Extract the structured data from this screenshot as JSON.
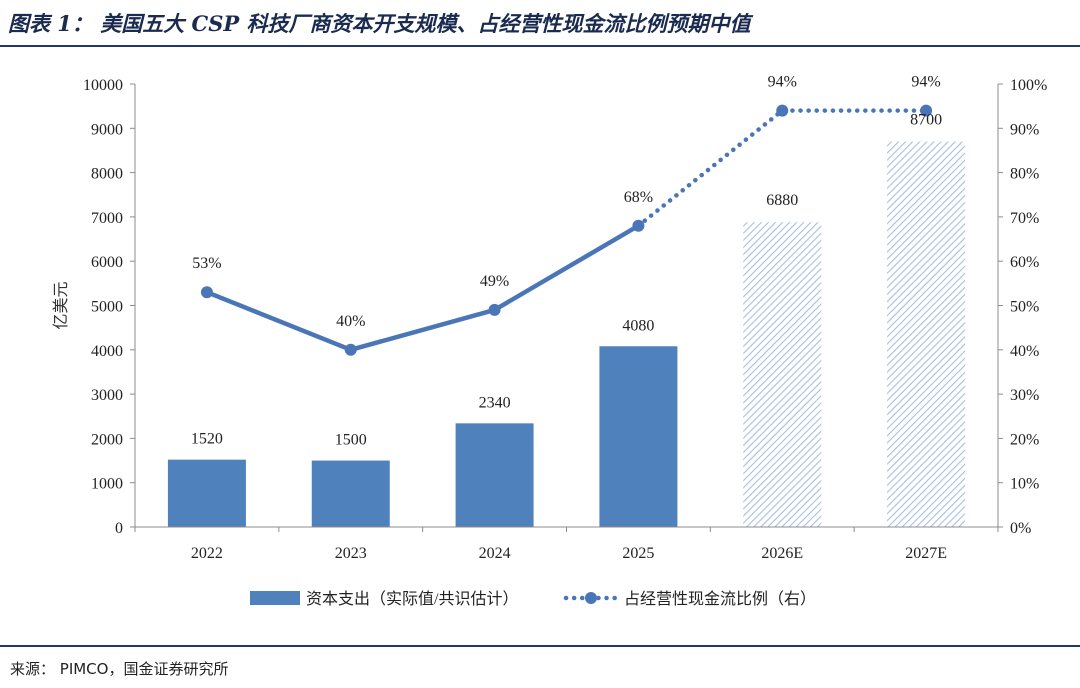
{
  "title": "图表 1：  美国五大 CSP 科技厂商资本开支规模、占经营性现金流比例预期中值",
  "source": "来源：  PIMCO，国金证券研究所",
  "chart_data": {
    "type": "bar",
    "categories": [
      "2022",
      "2023",
      "2024",
      "2025",
      "2026E",
      "2027E"
    ],
    "ylabel": "亿美元",
    "ylim": [
      0,
      10000
    ],
    "yticks": [
      0,
      1000,
      2000,
      3000,
      4000,
      5000,
      6000,
      7000,
      8000,
      9000,
      10000
    ],
    "y2lim": [
      0,
      100
    ],
    "y2ticks": [
      "0%",
      "10%",
      "20%",
      "30%",
      "40%",
      "50%",
      "60%",
      "70%",
      "80%",
      "90%",
      "100%"
    ],
    "legend_position": "bottom",
    "grid": false,
    "series": [
      {
        "name": "资本支出（实际值/共识估计）",
        "type": "bar",
        "values": [
          1520,
          1500,
          2340,
          4080,
          6880,
          8700
        ],
        "labels": [
          "1520",
          "1500",
          "2340",
          "4080",
          "6880",
          "8700"
        ],
        "estimated": [
          false,
          false,
          false,
          false,
          true,
          true
        ],
        "color": "#4f81bd"
      },
      {
        "name": "占经营性现金流比例（右）",
        "type": "line",
        "axis": "right",
        "values": [
          53,
          40,
          49,
          68,
          94,
          94
        ],
        "labels": [
          "53%",
          "40%",
          "49%",
          "68%",
          "94%",
          "94%"
        ],
        "color": "#4a76b8"
      }
    ]
  }
}
